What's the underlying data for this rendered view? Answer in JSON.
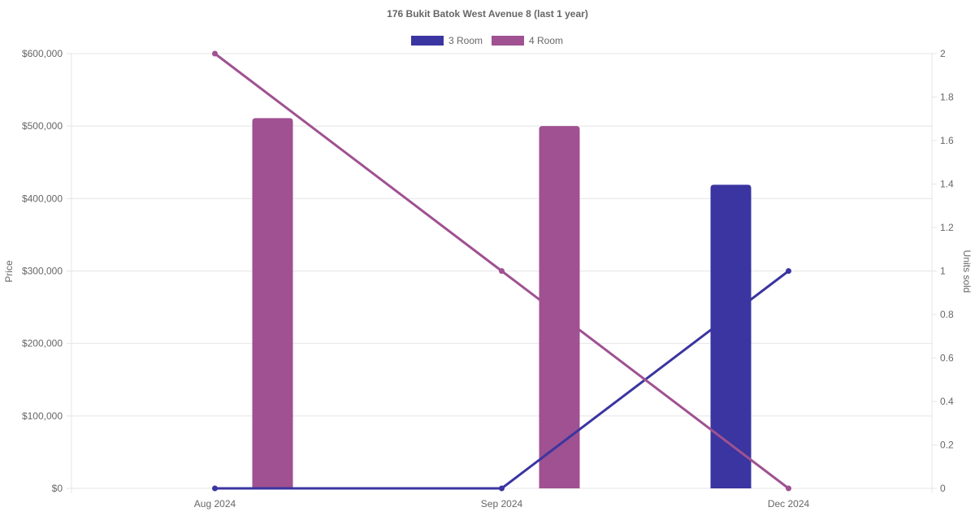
{
  "chart_data": {
    "type": "bar+line",
    "title": "176 Bukit Batok West Avenue 8 (last 1 year)",
    "categories": [
      "Aug 2024",
      "Sep 2024",
      "Dec 2024"
    ],
    "ylabel": "Price",
    "y2label": "Units sold",
    "ylim": [
      0,
      600000
    ],
    "y2lim": [
      0,
      2
    ],
    "yticks": [
      "$0",
      "$100,000",
      "$200,000",
      "$300,000",
      "$400,000",
      "$500,000",
      "$600,000"
    ],
    "yticks_values": [
      0,
      100000,
      200000,
      300000,
      400000,
      500000,
      600000
    ],
    "y2ticks": [
      "0",
      "0.2",
      "0.4",
      "0.6",
      "0.8",
      "1",
      "1.2",
      "1.4",
      "1.6",
      "1.8",
      "2"
    ],
    "y2ticks_values": [
      0,
      0.2,
      0.4,
      0.6,
      0.8,
      1,
      1.2,
      1.4,
      1.6,
      1.8,
      2
    ],
    "legend_position": "top",
    "grid": true,
    "series": [
      {
        "name": "3 Room",
        "color": "#3a35a0",
        "price": [
          null,
          null,
          419000
        ],
        "units_sold": [
          0,
          0,
          1
        ]
      },
      {
        "name": "4 Room",
        "color": "#9f5191",
        "price": [
          511000,
          500000,
          null
        ],
        "units_sold": [
          2,
          1,
          0
        ]
      }
    ]
  }
}
